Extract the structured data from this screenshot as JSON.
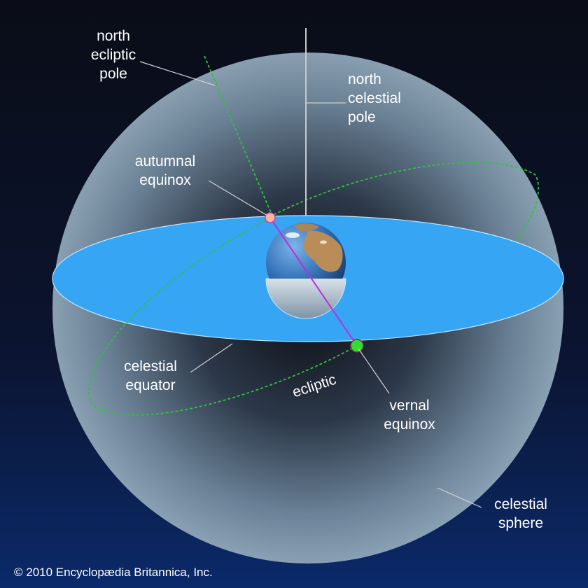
{
  "labels": {
    "north_ecliptic_pole": "north\necliptic\npole",
    "north_celestial_pole": "north\ncelestial\npole",
    "autumnal_equinox": "autumnal\nequinox",
    "celestial_equator": "celestial\nequator",
    "ecliptic": "ecliptic",
    "vernal_equinox": "vernal\nequinox",
    "celestial_sphere": "celestial\nsphere"
  },
  "copyright": "© 2010 Encyclopædia Britannica, Inc.",
  "colors": {
    "background_top": "#0a0d17",
    "background_bottom": "#0b2a6a",
    "equator_plane": "#36a5f4",
    "ecliptic_line": "#31c13d",
    "axis_line": "#c02bd9",
    "autumnal_point": "#f8b8a0",
    "vernal_point": "#2ee02e",
    "earth_ocean": "#3b79be",
    "earth_land": "#b98c58"
  }
}
